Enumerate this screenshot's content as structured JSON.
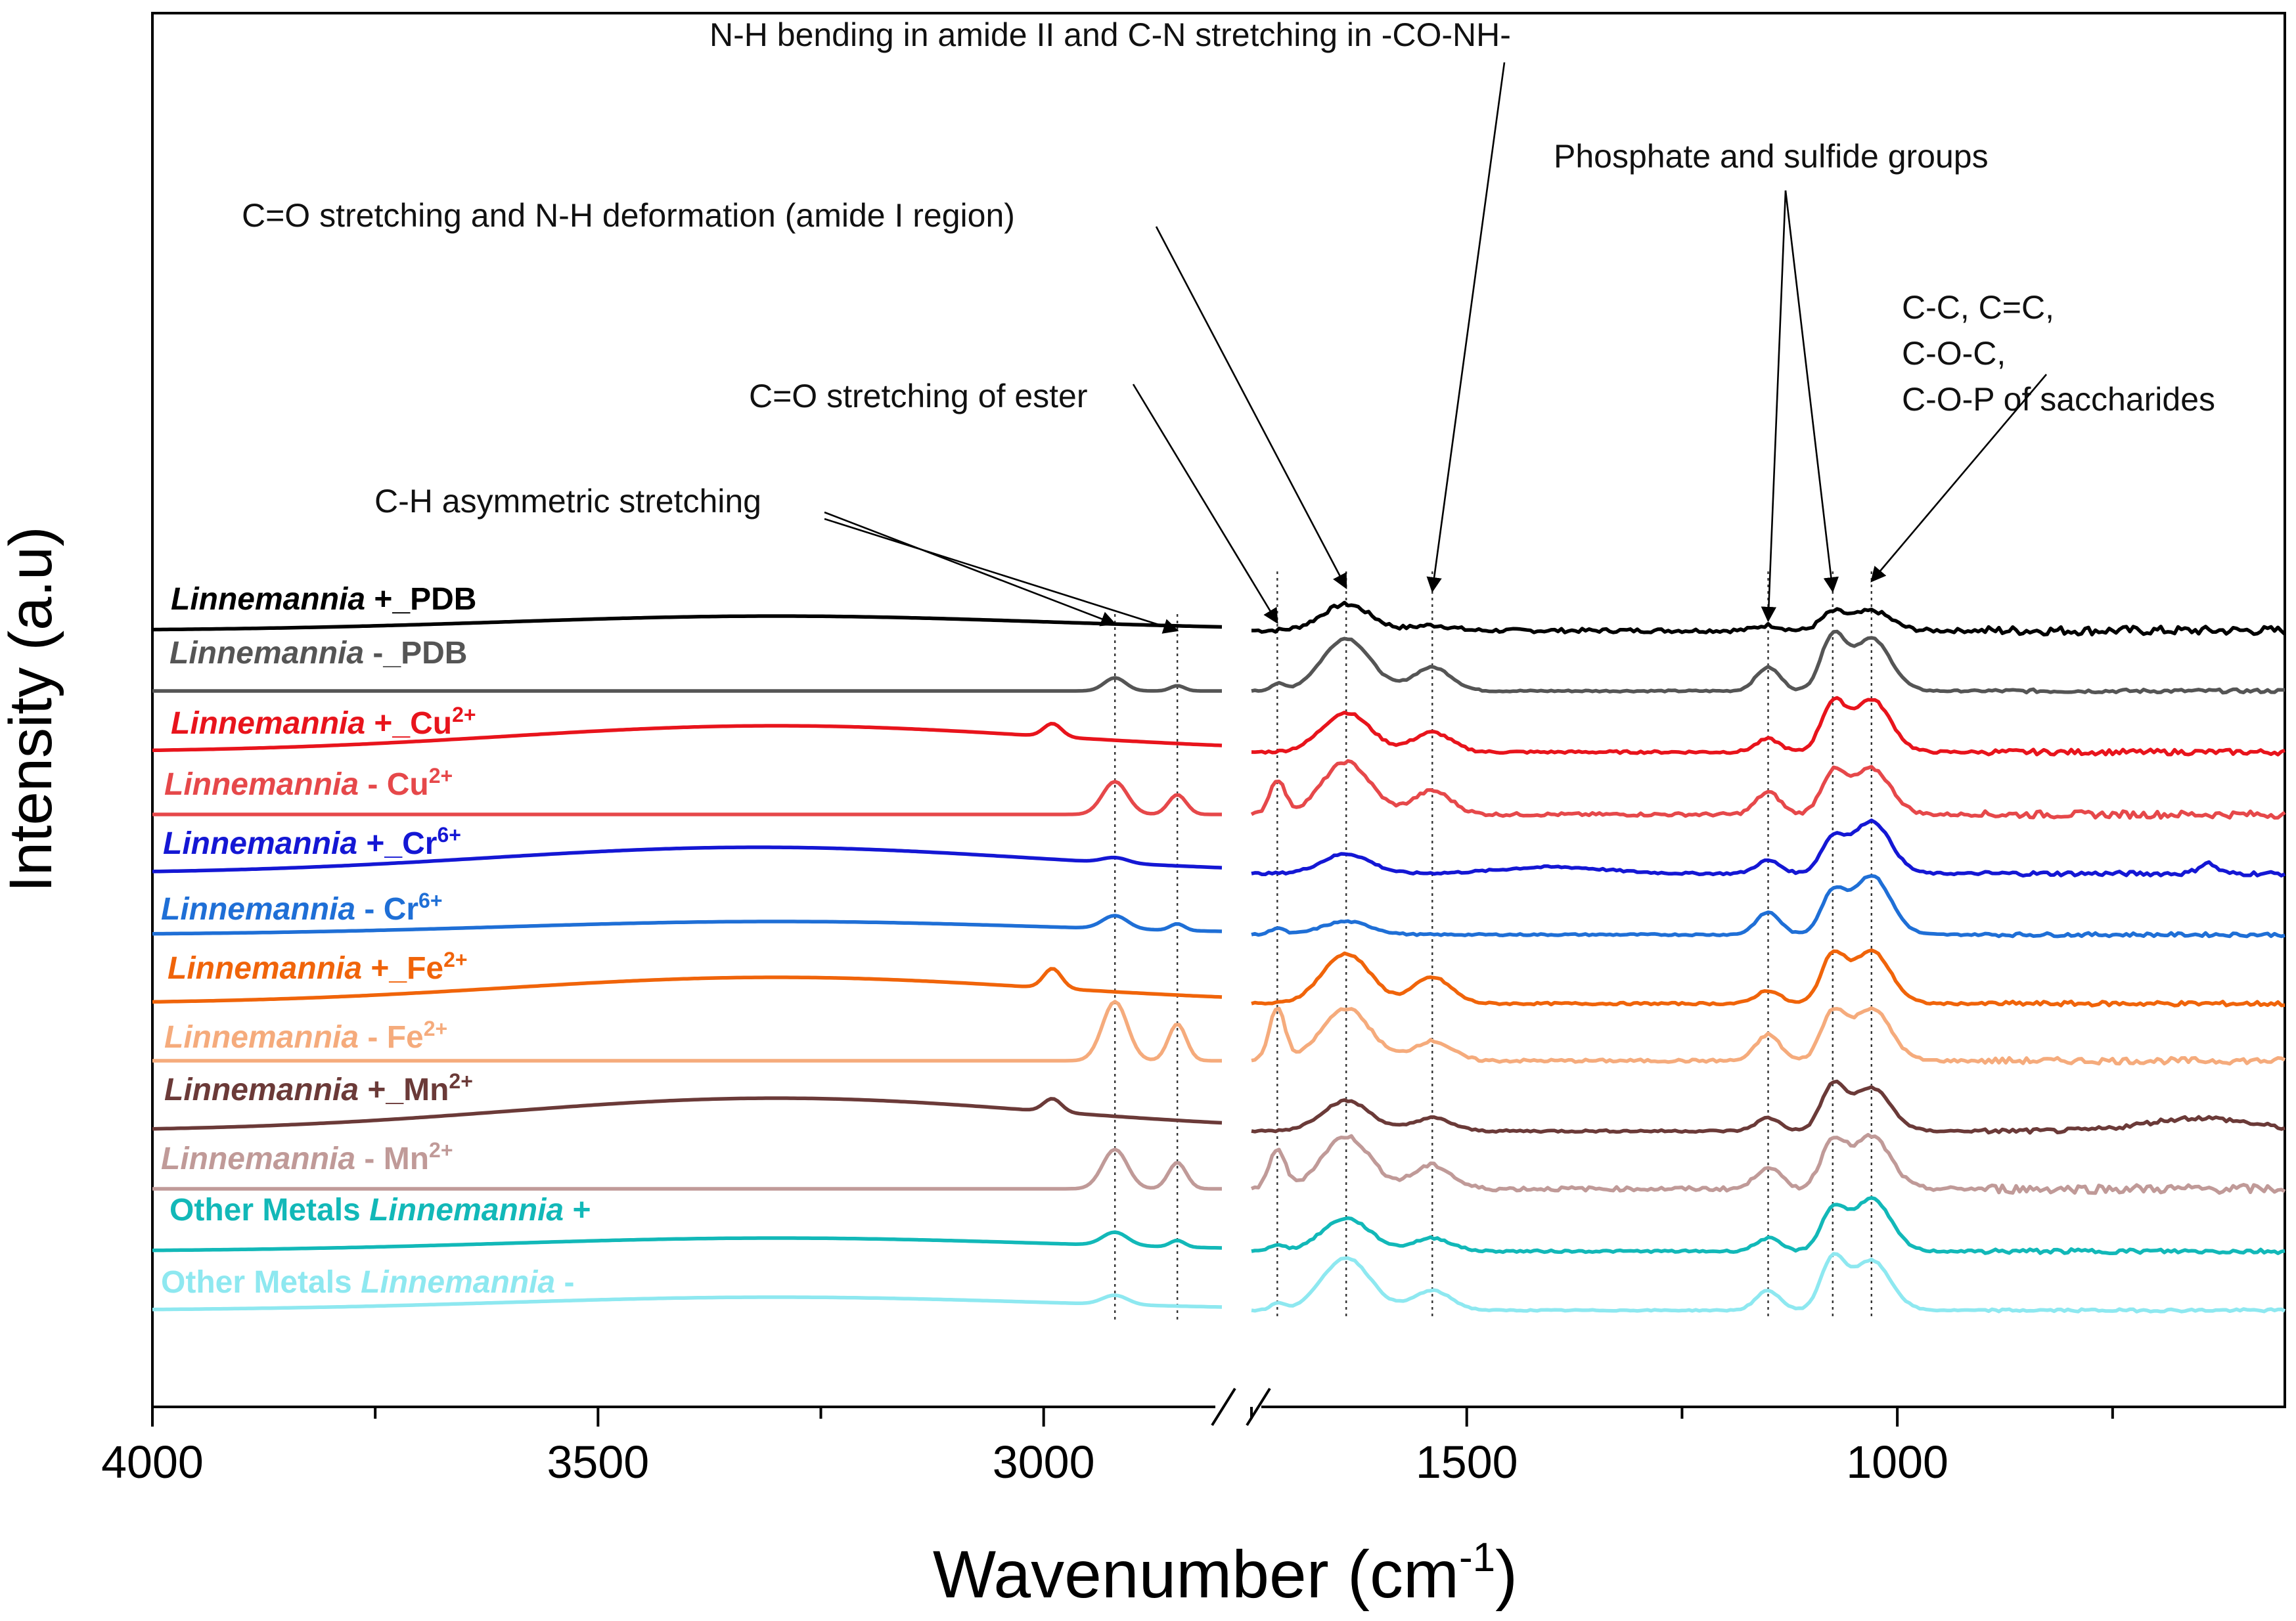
{
  "chart_data": {
    "type": "line",
    "title": "",
    "xlabel": "Wavenumber (cm",
    "xlabel_sup": "-1",
    "xlabel_close": ")",
    "ylabel": "Intensity (a.u)",
    "x_reversed": true,
    "x_break": [
      2800,
      1750
    ],
    "xlim": [
      4000,
      550
    ],
    "xticks": [
      "4000",
      "3500",
      "3000",
      "1500",
      "1000"
    ],
    "xtick_values": [
      4000,
      3500,
      3000,
      1500,
      1000
    ],
    "minor_xticks": [
      3750,
      3250,
      1750,
      1250,
      750
    ],
    "dotted_guides": [
      2920,
      2850,
      1720,
      1640,
      1540,
      1150,
      1075,
      1030
    ],
    "series": [
      {
        "name": "Linnemannia +_PDB",
        "label_italic": "Linnemannia",
        "label_rest": " +_PDB",
        "label_sup": "",
        "color": "#000000",
        "noise": 1.0,
        "peaks": {
          "high": [
            [
              1640,
              40,
              28
            ],
            [
              1540,
              8,
              22
            ],
            [
              1075,
              26,
              14
            ],
            [
              1030,
              30,
              22
            ],
            [
              1150,
              8,
              14
            ],
            [
              3300,
              22,
              300
            ]
          ],
          "low": []
        }
      },
      {
        "name": "Linnemannia -_PDB",
        "label_italic": "Linnemannia",
        "label_rest": " -_PDB",
        "label_sup": "",
        "color": "#555555",
        "noise": 0.4,
        "peaks": {
          "high": [
            [
              1640,
              80,
              28
            ],
            [
              1540,
              36,
              22
            ],
            [
              1075,
              80,
              14
            ],
            [
              1030,
              80,
              22
            ],
            [
              1150,
              36,
              14
            ]
          ],
          "low": [
            [
              2920,
              20,
              12
            ],
            [
              2850,
              8,
              8
            ],
            [
              1720,
              10,
              8
            ]
          ]
        }
      },
      {
        "name": "Linnemannia +_Cu2+",
        "label_italic": "Linnemannia",
        "label_rest": " +_Cu",
        "label_sup": "2+",
        "color": "#e8141c",
        "noise": 0.6,
        "peaks": {
          "high": [
            [
              1640,
              60,
              28
            ],
            [
              1540,
              30,
              22
            ],
            [
              1075,
              70,
              14
            ],
            [
              1030,
              80,
              22
            ],
            [
              1150,
              20,
              14
            ],
            [
              3300,
              40,
              300
            ]
          ],
          "low": [
            [
              2990,
              20,
              10
            ]
          ]
        }
      },
      {
        "name": "Linnemannia -_Cu2+",
        "label_italic": "Linnemannia",
        "label_rest": " -  Cu",
        "label_sup": "2+",
        "color": "#e6484a",
        "noise": 0.8,
        "peaks": {
          "high": [
            [
              1640,
              80,
              28
            ],
            [
              1540,
              36,
              22
            ],
            [
              1075,
              60,
              14
            ],
            [
              1030,
              70,
              22
            ],
            [
              1150,
              34,
              14
            ]
          ],
          "low": [
            [
              2920,
              50,
              14
            ],
            [
              2850,
              30,
              10
            ],
            [
              1720,
              52,
              9
            ]
          ]
        }
      },
      {
        "name": "Linnemannia +_Cr6+",
        "label_italic": "Linnemannia",
        "label_rest": " +_Cr",
        "label_sup": "6+",
        "color": "#1417d4",
        "noise": 0.5,
        "peaks": {
          "high": [
            [
              1640,
              30,
              28
            ],
            [
              1075,
              50,
              14
            ],
            [
              1030,
              80,
              22
            ],
            [
              1150,
              20,
              14
            ],
            [
              3320,
              40,
              300
            ],
            [
              1400,
              10,
              60
            ],
            [
              640,
              16,
              10
            ]
          ],
          "low": [
            [
              2920,
              8,
              14
            ]
          ]
        }
      },
      {
        "name": "Linnemannia -_Cr6+",
        "label_italic": "Linnemannia",
        "label_rest": " -  Cr",
        "label_sup": "6+",
        "color": "#1f6fd6",
        "noise": 0.4,
        "peaks": {
          "high": [
            [
              1640,
              20,
              28
            ],
            [
              1075,
              60,
              14
            ],
            [
              1030,
              90,
              22
            ],
            [
              1150,
              34,
              14
            ],
            [
              3300,
              20,
              300
            ]
          ],
          "low": [
            [
              2920,
              20,
              14
            ],
            [
              2850,
              10,
              8
            ],
            [
              1720,
              10,
              8
            ]
          ]
        }
      },
      {
        "name": "Linnemannia +_Fe2+",
        "label_italic": "Linnemannia",
        "label_rest": " +_Fe",
        "label_sup": "2+",
        "color": "#f0640a",
        "noise": 0.5,
        "peaks": {
          "high": [
            [
              1640,
              76,
              28
            ],
            [
              1540,
              40,
              22
            ],
            [
              1075,
              70,
              14
            ],
            [
              1030,
              80,
              22
            ],
            [
              1150,
              20,
              14
            ],
            [
              3300,
              40,
              300
            ]
          ],
          "low": [
            [
              2990,
              30,
              10
            ]
          ]
        }
      },
      {
        "name": "Linnemannia -_Fe2+",
        "label_italic": "Linnemannia",
        "label_rest": " -  Fe",
        "label_sup": "2+",
        "color": "#f5ab7c",
        "noise": 0.7,
        "peaks": {
          "high": [
            [
              1640,
              80,
              28
            ],
            [
              1540,
              30,
              22
            ],
            [
              1075,
              70,
              14
            ],
            [
              1030,
              80,
              22
            ],
            [
              1150,
              40,
              14
            ]
          ],
          "low": [
            [
              2920,
              90,
              14
            ],
            [
              2850,
              56,
              10
            ],
            [
              1720,
              80,
              9
            ]
          ]
        }
      },
      {
        "name": "Linnemannia +_Mn2+",
        "label_italic": "Linnemannia",
        "label_rest": " +_Mn",
        "label_sup": "2+",
        "color": "#6b3a38",
        "noise": 0.5,
        "peaks": {
          "high": [
            [
              1640,
              46,
              28
            ],
            [
              1540,
              20,
              22
            ],
            [
              1075,
              66,
              14
            ],
            [
              1030,
              66,
              22
            ],
            [
              1150,
              20,
              14
            ],
            [
              3300,
              50,
              300
            ],
            [
              650,
              20,
              60
            ]
          ],
          "low": [
            [
              2990,
              20,
              10
            ]
          ]
        }
      },
      {
        "name": "Linnemannia -_Mn2+",
        "label_italic": "Linnemannia",
        "label_rest": " -  Mn",
        "label_sup": "2+",
        "color": "#c09a98",
        "noise": 1.0,
        "peaks": {
          "high": [
            [
              1640,
              80,
              28
            ],
            [
              1540,
              36,
              22
            ],
            [
              1075,
              70,
              14
            ],
            [
              1030,
              80,
              22
            ],
            [
              1150,
              34,
              14
            ]
          ],
          "low": [
            [
              2920,
              60,
              14
            ],
            [
              2850,
              40,
              10
            ],
            [
              1720,
              60,
              9
            ]
          ]
        }
      },
      {
        "name": "Other Metals Linnemannia +",
        "label_prefix": "Other Metals ",
        "label_italic": "Linnemannia",
        "label_rest": " +",
        "label_sup": "",
        "color": "#12b8b8",
        "noise": 0.5,
        "peaks": {
          "high": [
            [
              1640,
              50,
              28
            ],
            [
              1540,
              20,
              22
            ],
            [
              1075,
              60,
              14
            ],
            [
              1030,
              80,
              22
            ],
            [
              1150,
              20,
              14
            ],
            [
              3300,
              20,
              300
            ]
          ],
          "low": [
            [
              2920,
              20,
              14
            ],
            [
              2850,
              10,
              8
            ],
            [
              1720,
              10,
              8
            ]
          ]
        }
      },
      {
        "name": "Other Metals Linnemannia -",
        "label_prefix": "Other Metals ",
        "label_italic": "Linnemannia",
        "label_rest": " -",
        "label_sup": "",
        "color": "#8ee8f0",
        "noise": 0.3,
        "peaks": {
          "high": [
            [
              1640,
              80,
              28
            ],
            [
              1540,
              30,
              22
            ],
            [
              1075,
              76,
              14
            ],
            [
              1030,
              76,
              22
            ],
            [
              1150,
              30,
              14
            ],
            [
              3300,
              20,
              300
            ]
          ],
          "low": [
            [
              2920,
              14,
              14
            ],
            [
              1720,
              10,
              8
            ]
          ]
        }
      }
    ],
    "annotations": [
      {
        "lines": [
          "N-H bending in amide II and C-N stretching in -CO-NH-"
        ],
        "targets": [
          1540
        ]
      },
      {
        "lines": [
          "Phosphate and sulfide groups"
        ],
        "targets": [
          1150,
          1075
        ]
      },
      {
        "lines": [
          "C=O stretching and N-H deformation (amide I region)"
        ],
        "targets": [
          1640
        ]
      },
      {
        "lines": [
          "C-C, C=C,",
          "C-O-C,",
          "C-O-P of saccharides"
        ],
        "targets": [
          1030
        ]
      },
      {
        "lines": [
          "C=O stretching of ester"
        ],
        "targets": [
          1720
        ]
      },
      {
        "lines": [
          "C-H asymmetric stretching"
        ],
        "targets": [
          2920,
          2850
        ]
      }
    ]
  }
}
